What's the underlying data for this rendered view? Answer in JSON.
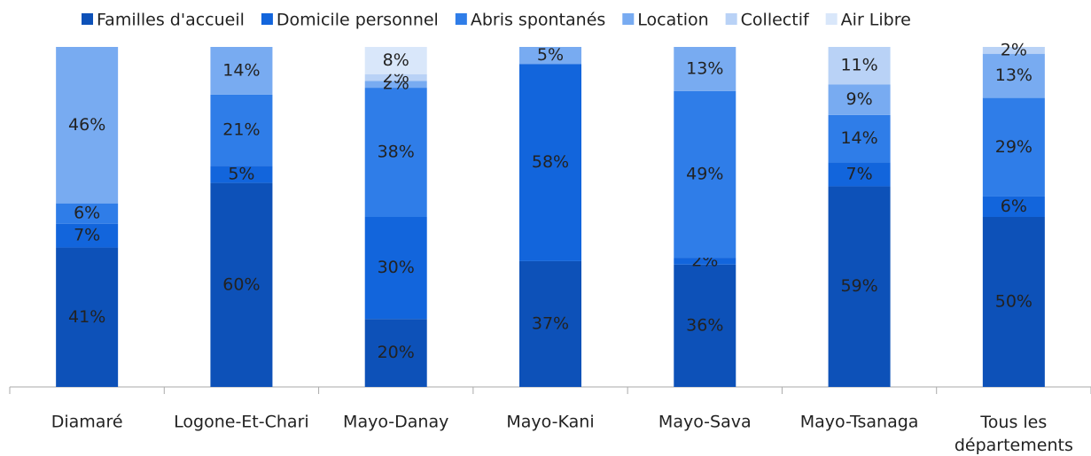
{
  "chart_data": {
    "type": "bar",
    "stacked": true,
    "categories": [
      "Diamaré",
      "Logone-Et-Chari",
      "Mayo-Danay",
      "Mayo-Kani",
      "Mayo-Sava",
      "Mayo-Tsanaga",
      "Tous les départements"
    ],
    "series": [
      {
        "name": "Familles d'accueil",
        "color": "#0d51b8",
        "label_color": "#ffffff",
        "values": [
          41,
          60,
          20,
          37,
          36,
          59,
          50
        ],
        "value_labels": [
          "41%",
          "60%",
          "20%",
          "37%",
          "36%",
          "59%",
          "50%"
        ]
      },
      {
        "name": "Domicile personnel",
        "color": "#1265dc",
        "label_color": "#111111",
        "values": [
          7,
          5,
          30,
          58,
          2,
          7,
          6
        ],
        "value_labels": [
          "7%",
          "5%",
          "30%",
          "58%",
          "2%",
          "7%",
          "6%"
        ]
      },
      {
        "name": "Abris spontanés",
        "color": "#2f7de8",
        "label_color": "#111111",
        "values": [
          6,
          21,
          38,
          0,
          49,
          14,
          29
        ],
        "value_labels": [
          "6%",
          "21%",
          "38%",
          null,
          "49%",
          "14%",
          "29%"
        ]
      },
      {
        "name": "Location",
        "color": "#78abf1",
        "label_color": "#111111",
        "values": [
          46,
          14,
          2,
          5,
          13,
          9,
          13
        ],
        "value_labels": [
          "46%",
          "14%",
          "2%",
          "5%",
          "13%",
          "9%",
          "13%"
        ]
      },
      {
        "name": "Collectif",
        "color": "#b9d2f6",
        "label_color": "#111111",
        "values": [
          0,
          0,
          2,
          0,
          0,
          11,
          2
        ],
        "value_labels": [
          null,
          null,
          "2%",
          null,
          null,
          "11%",
          "2%"
        ]
      },
      {
        "name": "Air Libre",
        "color": "#d9e7fa",
        "label_color": "#111111",
        "values": [
          0,
          0,
          8,
          0,
          0,
          0,
          0
        ],
        "value_labels": [
          null,
          null,
          "8%",
          null,
          null,
          null,
          null
        ]
      }
    ],
    "ylim": [
      0,
      100
    ],
    "legend": "top"
  }
}
